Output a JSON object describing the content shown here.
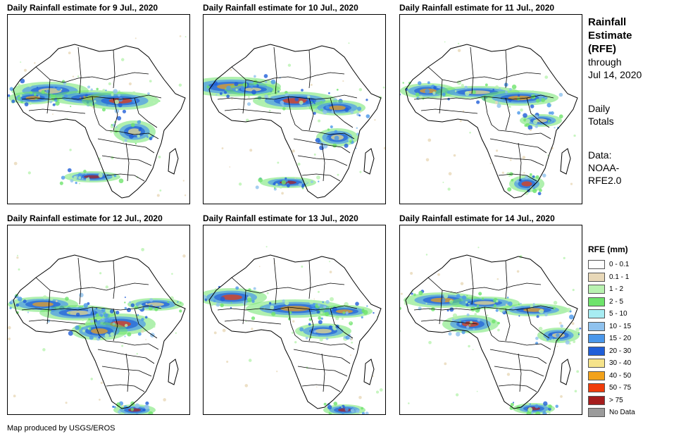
{
  "panels": [
    {
      "title": "Daily Rainfall estimate for 9 Jul., 2020"
    },
    {
      "title": "Daily Rainfall estimate for 10 Jul., 2020"
    },
    {
      "title": "Daily Rainfall estimate for 11 Jul., 2020"
    },
    {
      "title": "Daily Rainfall estimate for 12 Jul., 2020"
    },
    {
      "title": "Daily Rainfall estimate for 13 Jul., 2020"
    },
    {
      "title": "Daily Rainfall estimate for 14 Jul., 2020"
    }
  ],
  "side": {
    "title": "Rainfall\nEstimate\n(RFE)",
    "through": "through\nJul 14, 2020",
    "daily": "Daily\nTotals",
    "source": "Data:\nNOAA-\nRFE2.0"
  },
  "legend": {
    "title": "RFE (mm)",
    "items": [
      {
        "label": "0 - 0.1",
        "color": "#ffffff"
      },
      {
        "label": "0.1 - 1",
        "color": "#e8d8b8"
      },
      {
        "label": "1 - 2",
        "color": "#b9f2b0"
      },
      {
        "label": "2 - 5",
        "color": "#6ee36b"
      },
      {
        "label": "5 - 10",
        "color": "#a7ecf2"
      },
      {
        "label": "10 - 15",
        "color": "#8fc2ee"
      },
      {
        "label": "15 - 20",
        "color": "#4a97ea"
      },
      {
        "label": "20 - 30",
        "color": "#1f5ed8"
      },
      {
        "label": "30 - 40",
        "color": "#f5e38a"
      },
      {
        "label": "40 - 50",
        "color": "#f2a21a"
      },
      {
        "label": "50 - 75",
        "color": "#f03c0a"
      },
      {
        "label": "> 75",
        "color": "#a51d1d"
      },
      {
        "label": "No Data",
        "color": "#9b9b9b"
      }
    ]
  },
  "credit": "Map produced by USGS/EROS"
}
